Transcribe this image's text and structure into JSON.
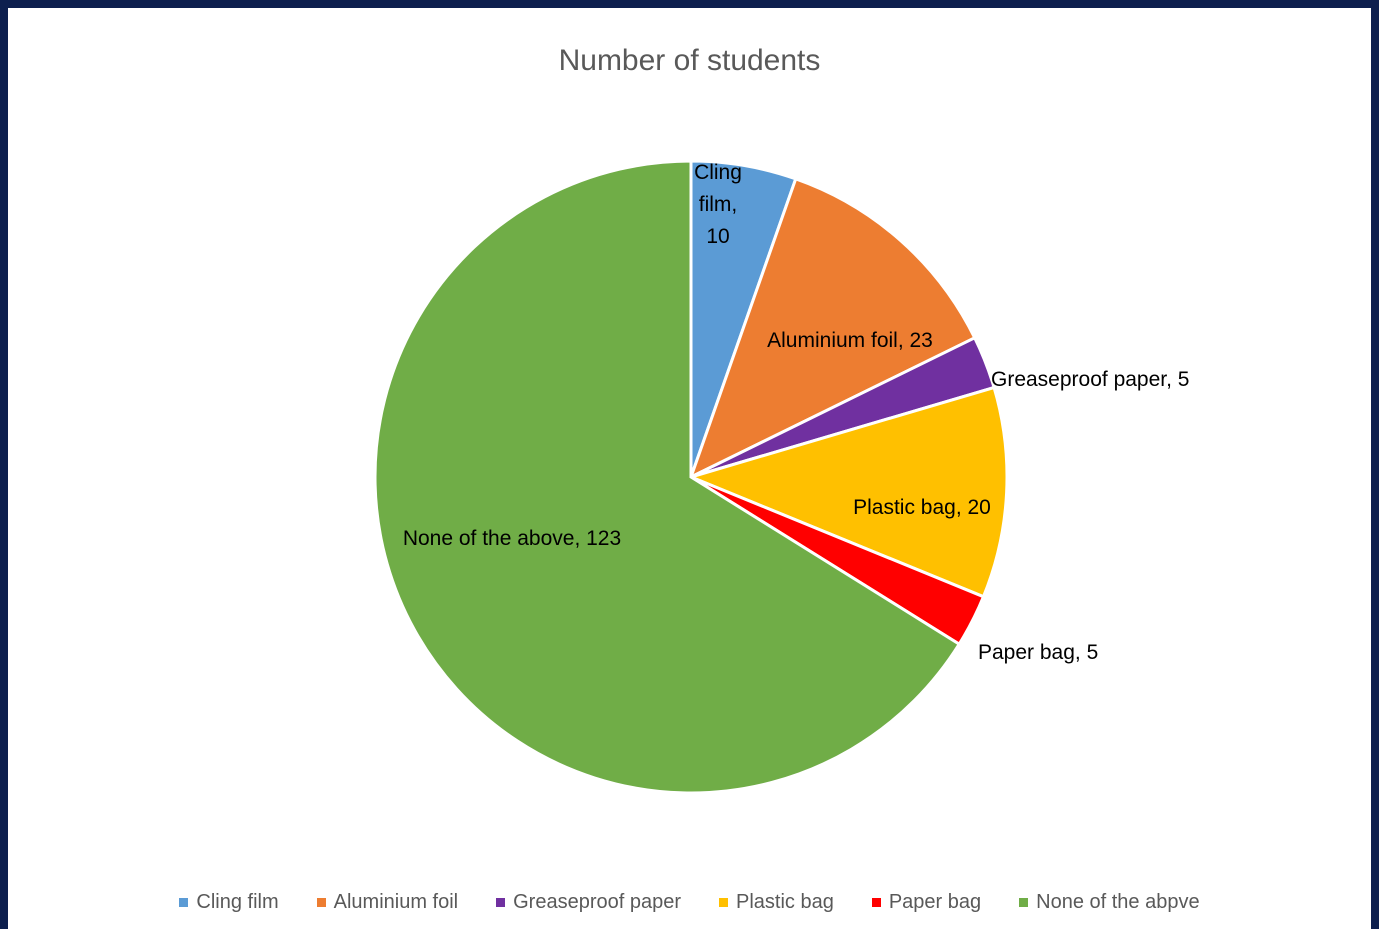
{
  "chart_data": {
    "type": "pie",
    "title": "Number of students",
    "slices": [
      {
        "label": "Cling film",
        "value": 10,
        "color": "#5b9bd5",
        "data_label": [
          "Cling",
          "film,",
          "10"
        ]
      },
      {
        "label": "Aluminium foil",
        "value": 23,
        "color": "#ed7d31",
        "data_label": [
          "Aluminium foil, 23"
        ]
      },
      {
        "label": "Greaseproof paper",
        "value": 5,
        "color": "#7030a0",
        "data_label": [
          "Greaseproof paper, 5"
        ]
      },
      {
        "label": "Plastic bag",
        "value": 20,
        "color": "#ffc000",
        "data_label": [
          "Plastic bag, 20"
        ]
      },
      {
        "label": "Paper bag",
        "value": 5,
        "color": "#ff0000",
        "data_label": [
          "Paper bag, 5"
        ]
      },
      {
        "label": "None of the abpve",
        "value": 123,
        "color": "#70ad47",
        "data_label": [
          "None of the above, 123"
        ]
      }
    ],
    "legend_position": "bottom"
  }
}
